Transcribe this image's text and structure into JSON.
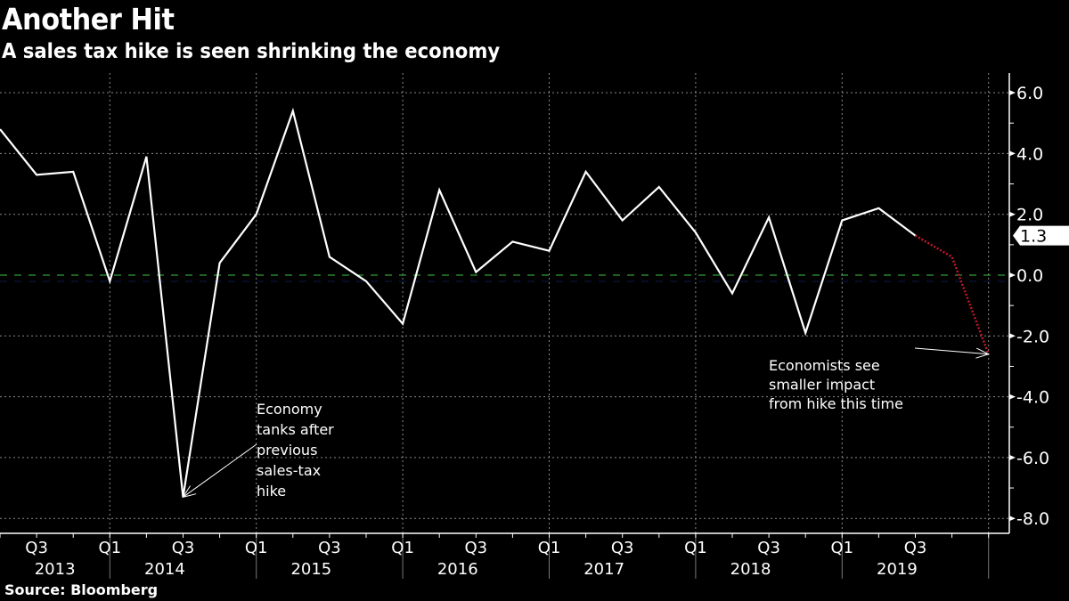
{
  "header": {
    "title": "Another Hit",
    "subtitle": "A sales tax hike is seen shrinking the economy"
  },
  "footer": {
    "source": "Source: Bloomberg"
  },
  "colors": {
    "background": "#000000",
    "actual_line": "#ffffff",
    "forecast_line": "#c0192b",
    "zero_line": "#3ec23e",
    "grid": "#8a8a8a",
    "last_value_badge_bg": "#ffffff",
    "last_value_badge_text": "#000000"
  },
  "chart_data": {
    "type": "line",
    "title": "Another Hit",
    "subtitle": "A sales tax hike is seen shrinking the economy",
    "xlabel": "",
    "ylabel": "",
    "ylim": [
      -8.5,
      6.6
    ],
    "y_ticks": [
      "6.0",
      "4.0",
      "2.0",
      "0.0",
      "-2.0",
      "-4.0",
      "-6.0",
      "-8.0"
    ],
    "y_tick_values": [
      6,
      4,
      2,
      0,
      -2,
      -4,
      -6,
      -8
    ],
    "y_axis_side": "right",
    "grid": true,
    "zero_line": true,
    "x": [
      "2013 Q2",
      "2013 Q3",
      "2013 Q4",
      "2014 Q1",
      "2014 Q2",
      "2014 Q3",
      "2014 Q4",
      "2015 Q1",
      "2015 Q2",
      "2015 Q3",
      "2015 Q4",
      "2016 Q1",
      "2016 Q2",
      "2016 Q3",
      "2016 Q4",
      "2017 Q1",
      "2017 Q2",
      "2017 Q3",
      "2017 Q4",
      "2018 Q1",
      "2018 Q2",
      "2018 Q3",
      "2018 Q4",
      "2019 Q1",
      "2019 Q2",
      "2019 Q3",
      "2019 Q4",
      "2020 Q1"
    ],
    "x_quarter_labels": [
      {
        "label": "Q3",
        "index": 1
      },
      {
        "label": "Q1",
        "index": 3
      },
      {
        "label": "Q3",
        "index": 5
      },
      {
        "label": "Q1",
        "index": 7
      },
      {
        "label": "Q3",
        "index": 9
      },
      {
        "label": "Q1",
        "index": 11
      },
      {
        "label": "Q3",
        "index": 13
      },
      {
        "label": "Q1",
        "index": 15
      },
      {
        "label": "Q3",
        "index": 17
      },
      {
        "label": "Q1",
        "index": 19
      },
      {
        "label": "Q3",
        "index": 21
      },
      {
        "label": "Q1",
        "index": 23
      },
      {
        "label": "Q3",
        "index": 25
      }
    ],
    "x_year_labels": [
      {
        "label": "2013",
        "center_index": 1.5
      },
      {
        "label": "2014",
        "center_index": 4.5
      },
      {
        "label": "2015",
        "center_index": 8.5
      },
      {
        "label": "2016",
        "center_index": 12.5
      },
      {
        "label": "2017",
        "center_index": 16.5
      },
      {
        "label": "2018",
        "center_index": 20.5
      },
      {
        "label": "2019",
        "center_index": 24.5
      }
    ],
    "year_divider_indices": [
      2.5,
      6.5,
      10.5,
      14.5,
      18.5,
      22.5,
      26.5
    ],
    "series": [
      {
        "name": "GDP growth (actual)",
        "style": "solid",
        "start_index": 0,
        "values": [
          4.8,
          3.3,
          3.4,
          -0.2,
          3.9,
          -7.3,
          0.4,
          2.0,
          5.4,
          0.6,
          -0.2,
          -1.6,
          2.8,
          0.1,
          1.1,
          0.8,
          3.4,
          1.8,
          2.9,
          1.4,
          -0.6,
          1.9,
          -1.9,
          1.8,
          2.2,
          1.3
        ]
      },
      {
        "name": "Economist forecast",
        "style": "dotted",
        "start_index": 25,
        "values": [
          1.3,
          0.6,
          -2.6
        ]
      }
    ],
    "last_value_label": "1.3",
    "annotations": [
      {
        "lines": [
          "Economy",
          "tanks after",
          "previous",
          "sales-tax",
          "hike"
        ],
        "points_to_index": 5,
        "points_to_value": -7.3
      },
      {
        "lines": [
          "Economists see",
          "smaller impact",
          "from hike this time"
        ],
        "points_to_index": 27,
        "points_to_value": -2.6
      }
    ]
  }
}
